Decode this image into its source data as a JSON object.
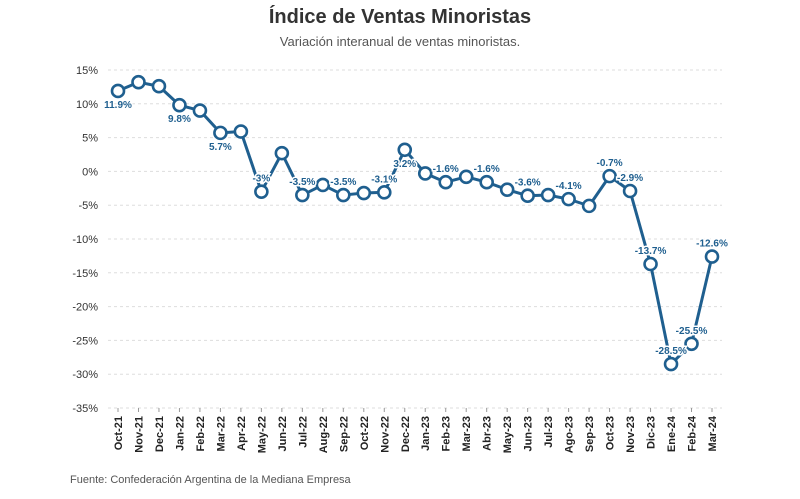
{
  "title": "Índice de Ventas Minoristas",
  "subtitle": "Variación interanual de ventas minoristas.",
  "source": "Fuente: Confederación Argentina de la Mediana Empresa",
  "colors": {
    "line": "#1f5f8f",
    "grid": "#dddddd",
    "label": "#1f5f8f",
    "marker_fill": "#ffffff"
  },
  "chart_data": {
    "type": "line",
    "title": "Índice de Ventas Minoristas",
    "subtitle": "Variación interanual de ventas minoristas.",
    "xlabel": "",
    "ylabel": "",
    "ylim": [
      -35,
      15
    ],
    "yticks": [
      15,
      10,
      5,
      0,
      -5,
      -10,
      -15,
      -20,
      -25,
      -30,
      -35
    ],
    "ytick_labels": [
      "15%",
      "10%",
      "5%",
      "0%",
      "-5%",
      "-10%",
      "-15%",
      "-20%",
      "-25%",
      "-30%",
      "-35%"
    ],
    "grid": "horizontal dashed",
    "categories": [
      "Oct-21",
      "Nov-21",
      "Dec-21",
      "Jan-22",
      "Feb-22",
      "Mar-22",
      "Apr-22",
      "May-22",
      "Jun-22",
      "Jul-22",
      "Aug-22",
      "Sep-22",
      "Oct-22",
      "Nov-22",
      "Dec-22",
      "Jan-23",
      "Feb-23",
      "Mar-23",
      "Abr-23",
      "May-23",
      "Jun-23",
      "Jul-23",
      "Ago-23",
      "Sep-23",
      "Oct-23",
      "Nov-23",
      "Dic-23",
      "Ene-24",
      "Feb-24",
      "Mar-24"
    ],
    "values": [
      11.9,
      13.2,
      12.6,
      9.8,
      9.0,
      5.7,
      5.9,
      -3.0,
      2.7,
      -3.5,
      -2.0,
      -3.5,
      -3.2,
      -3.1,
      3.2,
      -0.3,
      -1.6,
      -0.8,
      -1.6,
      -2.7,
      -3.6,
      -3.5,
      -4.1,
      -5.1,
      -0.7,
      -2.9,
      -13.7,
      -28.5,
      -25.5,
      -12.6
    ],
    "data_labels": [
      {
        "index": 0,
        "text": "11.9%",
        "pos": "below"
      },
      {
        "index": 3,
        "text": "9.8%",
        "pos": "below"
      },
      {
        "index": 5,
        "text": "5.7%",
        "pos": "below"
      },
      {
        "index": 7,
        "text": "-3%",
        "pos": "above"
      },
      {
        "index": 9,
        "text": "-3.5%",
        "pos": "above"
      },
      {
        "index": 11,
        "text": "-3.5%",
        "pos": "above"
      },
      {
        "index": 13,
        "text": "-3.1%",
        "pos": "above"
      },
      {
        "index": 14,
        "text": "3.2%",
        "pos": "below"
      },
      {
        "index": 16,
        "text": "-1.6%",
        "pos": "above"
      },
      {
        "index": 18,
        "text": "-1.6%",
        "pos": "above"
      },
      {
        "index": 20,
        "text": "-3.6%",
        "pos": "above"
      },
      {
        "index": 22,
        "text": "-4.1%",
        "pos": "above"
      },
      {
        "index": 24,
        "text": "-0.7%",
        "pos": "above"
      },
      {
        "index": 25,
        "text": "-2.9%",
        "pos": "above"
      },
      {
        "index": 26,
        "text": "-13.7%",
        "pos": "above"
      },
      {
        "index": 27,
        "text": "-28.5%",
        "pos": "above"
      },
      {
        "index": 28,
        "text": "-25.5%",
        "pos": "above"
      },
      {
        "index": 29,
        "text": "-12.6%",
        "pos": "above"
      }
    ]
  }
}
